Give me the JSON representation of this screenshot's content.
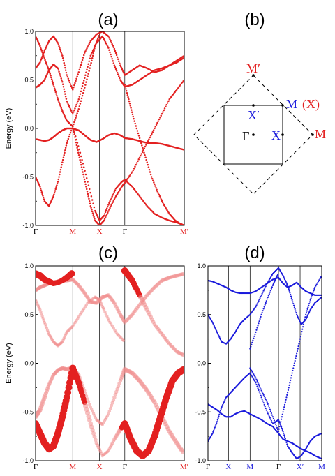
{
  "labels": {
    "a": "(a)",
    "b": "(b)",
    "c": "(c)",
    "d": "(d)"
  },
  "colors": {
    "red": "#e32020",
    "blue": "#1a1adc",
    "pink": "#f08c8c"
  },
  "chart_data": [
    {
      "id": "a",
      "type": "scatter",
      "ylabel": "Energy (eV)",
      "ylim": [
        -1.0,
        1.0
      ],
      "yticks": [
        "-1.0",
        "-0.5",
        "0.0",
        "0.5",
        "1.0"
      ],
      "kpoints": [
        {
          "label": "Γ",
          "pos": 0.0,
          "color": "black"
        },
        {
          "label": "M",
          "pos": 0.25,
          "color": "red"
        },
        {
          "label": "X",
          "pos": 0.43,
          "color": "red"
        },
        {
          "label": "Γ",
          "pos": 0.6,
          "color": "black"
        },
        {
          "label": "M′",
          "pos": 1.0,
          "color": "red"
        }
      ],
      "series": [
        {
          "x": [
            0,
            0.03,
            0.06,
            0.09,
            0.12,
            0.15,
            0.18,
            0.21,
            0.25,
            0.29,
            0.33,
            0.37,
            0.41,
            0.45,
            0.49,
            0.53,
            0.57,
            0.6,
            0.65,
            0.7,
            0.75,
            0.8,
            0.85,
            0.9,
            0.95,
            1.0
          ],
          "y": [
            -0.11,
            -0.12,
            -0.13,
            -0.12,
            -0.09,
            -0.05,
            -0.02,
            0.0,
            0.0,
            -0.02,
            -0.07,
            -0.12,
            -0.14,
            -0.11,
            -0.07,
            -0.05,
            -0.07,
            -0.1,
            -0.11,
            -0.13,
            -0.15,
            -0.15,
            -0.16,
            -0.18,
            -0.2,
            -0.22
          ]
        },
        {
          "x": [
            0,
            0.03,
            0.06,
            0.09,
            0.12,
            0.15,
            0.18,
            0.21,
            0.25,
            0.29,
            0.33,
            0.37,
            0.41,
            0.45,
            0.49,
            0.53,
            0.57,
            0.6,
            0.65,
            0.7,
            0.75,
            0.8,
            0.85,
            0.9,
            0.95,
            1.0
          ],
          "y": [
            0.42,
            0.45,
            0.5,
            0.6,
            0.66,
            0.62,
            0.48,
            0.28,
            0.15,
            0.3,
            0.52,
            0.75,
            0.88,
            0.95,
            0.83,
            0.65,
            0.5,
            0.43,
            0.45,
            0.5,
            0.55,
            0.6,
            0.62,
            0.65,
            0.68,
            0.73
          ]
        },
        {
          "x": [
            0,
            0.03,
            0.06,
            0.09,
            0.12,
            0.15,
            0.18,
            0.21,
            0.25,
            0.29,
            0.33,
            0.37,
            0.41,
            0.45,
            0.49,
            0.53,
            0.57,
            0.6,
            0.65,
            0.7,
            0.75,
            0.8,
            0.85,
            0.9,
            0.95,
            1.0
          ],
          "y": [
            0.62,
            0.68,
            0.8,
            0.9,
            0.95,
            0.88,
            0.75,
            0.55,
            0.4,
            0.58,
            0.78,
            0.9,
            0.97,
            1.0,
            0.95,
            0.82,
            0.65,
            0.55,
            0.6,
            0.65,
            0.62,
            0.58,
            0.6,
            0.65,
            0.7,
            0.75
          ]
        },
        {
          "x": [
            0,
            0.03,
            0.06,
            0.09,
            0.12,
            0.15,
            0.18,
            0.21,
            0.25,
            0.3,
            0.35,
            0.4,
            0.43,
            0.46,
            0.5,
            0.54,
            0.58,
            0.6,
            0.65,
            0.7,
            0.75,
            0.8,
            0.85,
            0.9,
            0.95,
            1.0
          ],
          "y": [
            -0.5,
            -0.6,
            -0.75,
            -0.8,
            -0.7,
            -0.55,
            -0.35,
            -0.15,
            0.02,
            -0.25,
            -0.55,
            -0.85,
            -0.95,
            -0.9,
            -0.75,
            -0.62,
            -0.55,
            -0.53,
            -0.6,
            -0.7,
            -0.8,
            -0.88,
            -0.92,
            -0.95,
            -0.97,
            -1.0
          ]
        },
        {
          "x": [
            0.25,
            0.28,
            0.31,
            0.34,
            0.37,
            0.4,
            0.43,
            0.46,
            0.5,
            0.54,
            0.58,
            0.6,
            0.65,
            0.7,
            0.75,
            0.8,
            0.85,
            0.9,
            0.95,
            1.0
          ],
          "y": [
            0.02,
            -0.2,
            -0.4,
            -0.6,
            -0.8,
            -0.95,
            -1.0,
            -0.95,
            -0.82,
            -0.7,
            -0.6,
            -0.56,
            -0.45,
            -0.3,
            -0.15,
            0.0,
            0.15,
            0.3,
            0.4,
            0.5
          ]
        },
        {
          "x": [
            0.0,
            0.03,
            0.06,
            0.09,
            0.12,
            0.15,
            0.18,
            0.21,
            0.25,
            0.29,
            0.33,
            0.37,
            0.4,
            0.43
          ],
          "y": [
            0.95,
            0.85,
            0.72,
            0.6,
            0.45,
            0.3,
            0.18,
            0.08,
            0.02,
            0.2,
            0.42,
            0.65,
            0.85,
            0.97
          ]
        },
        {
          "x": [
            0.6,
            0.63,
            0.66,
            0.7,
            0.74,
            0.78,
            0.82,
            0.86,
            0.9,
            0.94,
            0.97,
            1.0
          ],
          "y": [
            0.45,
            0.28,
            0.1,
            -0.1,
            -0.3,
            -0.5,
            -0.65,
            -0.78,
            -0.88,
            -0.95,
            -0.98,
            -1.0
          ]
        }
      ]
    },
    {
      "id": "c",
      "type": "scatter",
      "ylabel": "Energy (eV)",
      "ylim": [
        -1.0,
        1.0
      ],
      "yticks": [
        "-1.0",
        "-0.5",
        "0.0",
        "0.5",
        "1.0"
      ],
      "kpoints": [
        {
          "label": "Γ",
          "pos": 0.0,
          "color": "black"
        },
        {
          "label": "M",
          "pos": 0.25,
          "color": "red"
        },
        {
          "label": "X",
          "pos": 0.43,
          "color": "red"
        },
        {
          "label": "Γ",
          "pos": 0.6,
          "color": "black"
        },
        {
          "label": "M′",
          "pos": 1.0,
          "color": "red"
        }
      ],
      "series": [
        {
          "x": [
            0,
            0.03,
            0.06,
            0.09,
            0.12,
            0.15,
            0.18,
            0.21,
            0.25,
            0.29,
            0.33,
            0.37,
            0.41,
            0.45,
            0.49,
            0.53,
            0.57,
            0.6,
            0.65,
            0.7,
            0.75,
            0.8,
            0.85,
            0.9,
            0.95,
            1.0
          ],
          "y": [
            -0.55,
            -0.48,
            -0.35,
            -0.22,
            -0.12,
            -0.07,
            -0.05,
            -0.06,
            -0.05,
            -0.12,
            -0.28,
            -0.45,
            -0.58,
            -0.63,
            -0.52,
            -0.35,
            -0.18,
            -0.06,
            -0.1,
            -0.18,
            -0.28,
            -0.4,
            -0.55,
            -0.7,
            -0.82,
            -0.93
          ],
          "size": [
            6,
            6,
            6,
            5,
            5,
            5,
            5,
            5,
            6,
            5,
            4,
            4,
            4,
            4,
            4,
            5,
            5,
            6,
            6,
            6,
            6,
            6,
            6,
            6,
            6,
            6
          ]
        },
        {
          "x": [
            0,
            0.03,
            0.06,
            0.09,
            0.12,
            0.15,
            0.18,
            0.21,
            0.25,
            0.29,
            0.33,
            0.37,
            0.41,
            0.45,
            0.49,
            0.53,
            0.57,
            0.6,
            0.65,
            0.7,
            0.75,
            0.8,
            0.85,
            0.9,
            0.95,
            1.0
          ],
          "y": [
            0.75,
            0.78,
            0.8,
            0.82,
            0.83,
            0.84,
            0.85,
            0.85,
            0.86,
            0.8,
            0.72,
            0.63,
            0.62,
            0.68,
            0.7,
            0.62,
            0.5,
            0.42,
            0.5,
            0.6,
            0.7,
            0.78,
            0.85,
            0.88,
            0.9,
            0.92
          ],
          "size": [
            5,
            5,
            5,
            5,
            5,
            5,
            5,
            5,
            5,
            5,
            5,
            5,
            5,
            5,
            5,
            5,
            5,
            5,
            5,
            5,
            5,
            5,
            5,
            5,
            5,
            5
          ]
        },
        {
          "x": [
            0,
            0.03,
            0.06,
            0.09,
            0.12,
            0.15,
            0.18,
            0.21,
            0.25,
            0.29,
            0.33,
            0.37,
            0.41,
            0.45,
            0.49,
            0.53,
            0.57,
            0.6
          ],
          "y": [
            -0.62,
            -0.72,
            -0.82,
            -0.88,
            -0.85,
            -0.72,
            -0.55,
            -0.35,
            -0.05,
            -0.2,
            -0.4,
            -0.62,
            -0.82,
            -0.95,
            -0.9,
            -0.78,
            -0.68,
            -0.62
          ],
          "size": [
            9,
            9,
            9,
            9,
            9,
            9,
            9,
            9,
            9,
            8,
            7,
            6,
            5,
            4,
            4,
            5,
            6,
            9
          ]
        },
        {
          "x": [
            0.6,
            0.64,
            0.68,
            0.72,
            0.76,
            0.8,
            0.84,
            0.88,
            0.92,
            0.96,
            1.0
          ],
          "y": [
            -0.62,
            -0.78,
            -0.9,
            -0.95,
            -0.9,
            -0.75,
            -0.55,
            -0.35,
            -0.18,
            -0.1,
            -0.06
          ],
          "size": [
            9,
            9,
            9,
            9,
            9,
            9,
            9,
            9,
            9,
            9,
            9
          ]
        },
        {
          "x": [
            0.0,
            0.03,
            0.06,
            0.09,
            0.12,
            0.15,
            0.18,
            0.21,
            0.25,
            0.3,
            0.35,
            0.4,
            0.43,
            0.46,
            0.5,
            0.55,
            0.6
          ],
          "y": [
            0.65,
            0.55,
            0.42,
            0.3,
            0.22,
            0.18,
            0.22,
            0.32,
            0.38,
            0.5,
            0.62,
            0.68,
            0.65,
            0.55,
            0.42,
            0.3,
            0.22
          ],
          "size": [
            4,
            4,
            4,
            4,
            4,
            4,
            4,
            4,
            4,
            4,
            4,
            4,
            4,
            4,
            4,
            4,
            4
          ]
        },
        {
          "x": [
            0.6,
            0.65,
            0.7,
            0.75,
            0.8,
            0.85,
            0.9,
            0.95,
            1.0
          ],
          "y": [
            0.95,
            0.85,
            0.7,
            0.55,
            0.4,
            0.3,
            0.2,
            0.12,
            0.08
          ],
          "size": [
            9,
            8,
            7,
            6,
            5,
            5,
            5,
            5,
            5
          ]
        },
        {
          "x": [
            0.0,
            0.03,
            0.06,
            0.09,
            0.12,
            0.15,
            0.18,
            0.21,
            0.25
          ],
          "y": [
            0.92,
            0.9,
            0.86,
            0.84,
            0.82,
            0.83,
            0.85,
            0.88,
            0.93
          ],
          "size": [
            9,
            9,
            8,
            8,
            7,
            7,
            7,
            8,
            9
          ]
        }
      ]
    },
    {
      "id": "d",
      "type": "scatter",
      "ylim": [
        -1.0,
        1.0
      ],
      "yticks": [
        "-1.0",
        "-0.5",
        "0.0",
        "0.5",
        "1.0"
      ],
      "kpoints": [
        {
          "label": "Γ",
          "pos": 0.0,
          "color": "black"
        },
        {
          "label": "X",
          "pos": 0.18,
          "color": "blue"
        },
        {
          "label": "M",
          "pos": 0.37,
          "color": "blue"
        },
        {
          "label": "Γ",
          "pos": 0.62,
          "color": "black"
        },
        {
          "label": "X′",
          "pos": 0.81,
          "color": "blue"
        },
        {
          "label": "M",
          "pos": 1.0,
          "color": "blue"
        }
      ],
      "series": [
        {
          "x": [
            0,
            0.04,
            0.08,
            0.12,
            0.16,
            0.2,
            0.24,
            0.28,
            0.32,
            0.37,
            0.42,
            0.47,
            0.52,
            0.57,
            0.62,
            0.66,
            0.7,
            0.74,
            0.78,
            0.82,
            0.86,
            0.9,
            0.94,
            1.0
          ],
          "y": [
            0.85,
            0.84,
            0.82,
            0.8,
            0.78,
            0.75,
            0.73,
            0.72,
            0.72,
            0.72,
            0.74,
            0.78,
            0.82,
            0.86,
            0.88,
            0.82,
            0.78,
            0.8,
            0.83,
            0.78,
            0.74,
            0.72,
            0.7,
            0.7
          ]
        },
        {
          "x": [
            0,
            0.04,
            0.08,
            0.12,
            0.16,
            0.2,
            0.24,
            0.28,
            0.32,
            0.37,
            0.42,
            0.47,
            0.52,
            0.57,
            0.62,
            0.66,
            0.7,
            0.74,
            0.78,
            0.82,
            0.86,
            0.9,
            0.94,
            1.0
          ],
          "y": [
            -0.42,
            -0.45,
            -0.48,
            -0.52,
            -0.55,
            -0.55,
            -0.52,
            -0.5,
            -0.49,
            -0.52,
            -0.55,
            -0.58,
            -0.62,
            -0.65,
            -0.72,
            -0.78,
            -0.8,
            -0.82,
            -0.85,
            -0.88,
            -0.9,
            -0.92,
            -0.95,
            -0.98
          ]
        },
        {
          "x": [
            0,
            0.04,
            0.08,
            0.12,
            0.16,
            0.2,
            0.24,
            0.28,
            0.32,
            0.37,
            0.42,
            0.47,
            0.52,
            0.57,
            0.62,
            0.66,
            0.7,
            0.74,
            0.78,
            0.82,
            0.86,
            0.9,
            0.94,
            1.0
          ],
          "y": [
            -0.8,
            -0.72,
            -0.6,
            -0.45,
            -0.35,
            -0.3,
            -0.25,
            -0.2,
            -0.15,
            -0.1,
            -0.2,
            -0.35,
            -0.5,
            -0.62,
            -0.58,
            -0.7,
            -0.85,
            -0.92,
            -0.98,
            -0.95,
            -0.88,
            -0.8,
            -0.75,
            -0.72
          ]
        },
        {
          "x": [
            0,
            0.04,
            0.08,
            0.12,
            0.16,
            0.2,
            0.24,
            0.28,
            0.32,
            0.37,
            0.42,
            0.47,
            0.52,
            0.57,
            0.62,
            0.66,
            0.7,
            0.74,
            0.78,
            0.82,
            0.86,
            0.9,
            0.94,
            1.0
          ],
          "y": [
            0.5,
            0.42,
            0.32,
            0.22,
            0.2,
            0.25,
            0.32,
            0.4,
            0.45,
            0.5,
            0.58,
            0.7,
            0.82,
            0.92,
            0.98,
            0.9,
            0.8,
            0.65,
            0.5,
            0.4,
            0.45,
            0.55,
            0.62,
            0.68
          ]
        },
        {
          "x": [
            0.37,
            0.42,
            0.47,
            0.52,
            0.57,
            0.62,
            0.66,
            0.7,
            0.74,
            0.78,
            0.82,
            0.86,
            0.9,
            0.94,
            1.0
          ],
          "y": [
            -0.05,
            -0.15,
            -0.28,
            -0.4,
            -0.55,
            -0.7,
            -0.5,
            -0.3,
            -0.1,
            0.1,
            0.3,
            0.5,
            0.65,
            0.78,
            0.9
          ]
        },
        {
          "x": [
            0.37,
            0.42,
            0.47,
            0.52,
            0.57,
            0.6,
            0.62
          ],
          "y": [
            0.15,
            0.32,
            0.5,
            0.66,
            0.8,
            0.88,
            0.92
          ]
        }
      ]
    }
  ]
}
